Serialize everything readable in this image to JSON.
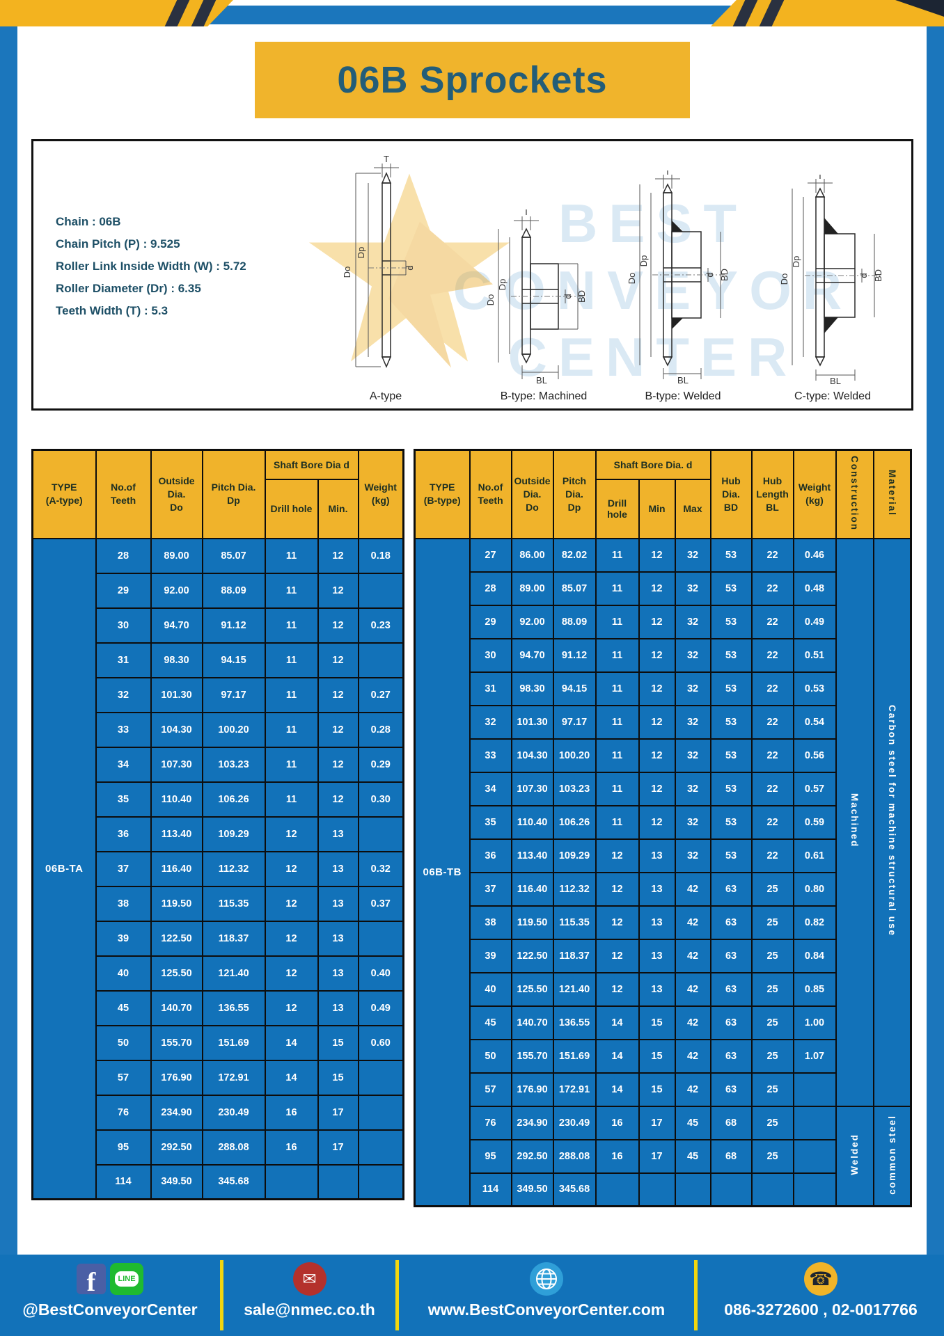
{
  "title": "06B Sprockets",
  "colors": {
    "blue": "#1272b9",
    "yellow": "#f0b32b",
    "banner_text": "#235d78",
    "footer_divider": "#f2d60e"
  },
  "specs": [
    "Chain : 06B",
    "Chain Pitch (P) : 9.525",
    "Roller Link Inside Width (W) : 5.72",
    "Roller Diameter (Dr) : 6.35",
    "Teeth Width (T) : 5.3"
  ],
  "watermark": {
    "lines": [
      "BEST",
      "CONVEYOR",
      "CENTER"
    ]
  },
  "diagrams": {
    "dims": {
      "T": "T",
      "Do": "Do",
      "Dp": "Dp",
      "d": "d",
      "BD": "BD",
      "BL": "BL"
    },
    "captions": [
      "A-type",
      "B-type: Machined",
      "B-type: Welded",
      "C-type: Welded"
    ]
  },
  "table_a": {
    "type_label": "06B-TA",
    "headers": {
      "type": [
        "TYPE",
        "(A-type)"
      ],
      "teeth": [
        "No.of",
        "Teeth"
      ],
      "outside": [
        "Outside",
        "Dia.",
        "Do"
      ],
      "pitch": [
        "Pitch Dia.",
        "Dp"
      ],
      "shaft_bore": "Shaft Bore Dia d",
      "drill": "Drill hole",
      "min": "Min.",
      "weight": [
        "Weight",
        "(kg)"
      ]
    },
    "rows": [
      [
        "28",
        "89.00",
        "85.07",
        "11",
        "12",
        "0.18"
      ],
      [
        "29",
        "92.00",
        "88.09",
        "11",
        "12",
        ""
      ],
      [
        "30",
        "94.70",
        "91.12",
        "11",
        "12",
        "0.23"
      ],
      [
        "31",
        "98.30",
        "94.15",
        "11",
        "12",
        ""
      ],
      [
        "32",
        "101.30",
        "97.17",
        "11",
        "12",
        "0.27"
      ],
      [
        "33",
        "104.30",
        "100.20",
        "11",
        "12",
        "0.28"
      ],
      [
        "34",
        "107.30",
        "103.23",
        "11",
        "12",
        "0.29"
      ],
      [
        "35",
        "110.40",
        "106.26",
        "11",
        "12",
        "0.30"
      ],
      [
        "36",
        "113.40",
        "109.29",
        "12",
        "13",
        ""
      ],
      [
        "37",
        "116.40",
        "112.32",
        "12",
        "13",
        "0.32"
      ],
      [
        "38",
        "119.50",
        "115.35",
        "12",
        "13",
        "0.37"
      ],
      [
        "39",
        "122.50",
        "118.37",
        "12",
        "13",
        ""
      ],
      [
        "40",
        "125.50",
        "121.40",
        "12",
        "13",
        "0.40"
      ],
      [
        "45",
        "140.70",
        "136.55",
        "12",
        "13",
        "0.49"
      ],
      [
        "50",
        "155.70",
        "151.69",
        "14",
        "15",
        "0.60"
      ],
      [
        "57",
        "176.90",
        "172.91",
        "14",
        "15",
        ""
      ],
      [
        "76",
        "234.90",
        "230.49",
        "16",
        "17",
        ""
      ],
      [
        "95",
        "292.50",
        "288.08",
        "16",
        "17",
        ""
      ],
      [
        "114",
        "349.50",
        "345.68",
        "",
        "",
        ""
      ]
    ]
  },
  "table_b": {
    "type_label": "06B-TB",
    "headers": {
      "type": [
        "TYPE",
        "(B-type)"
      ],
      "teeth": [
        "No.of",
        "Teeth"
      ],
      "outside": [
        "Outside",
        "Dia.",
        "Do"
      ],
      "pitch": [
        "Pitch",
        "Dia.",
        "Dp"
      ],
      "shaft_bore": "Shaft Bore Dia. d",
      "drill": "Drill hole",
      "min": "Min",
      "max": "Max",
      "hub_dia": [
        "Hub",
        "Dia.",
        "BD"
      ],
      "hub_len": [
        "Hub",
        "Length",
        "BL"
      ],
      "weight": [
        "Weight",
        "(kg)"
      ],
      "construction": "Construction",
      "material": "Material"
    },
    "rows": [
      [
        "27",
        "86.00",
        "82.02",
        "11",
        "12",
        "32",
        "53",
        "22",
        "0.46"
      ],
      [
        "28",
        "89.00",
        "85.07",
        "11",
        "12",
        "32",
        "53",
        "22",
        "0.48"
      ],
      [
        "29",
        "92.00",
        "88.09",
        "11",
        "12",
        "32",
        "53",
        "22",
        "0.49"
      ],
      [
        "30",
        "94.70",
        "91.12",
        "11",
        "12",
        "32",
        "53",
        "22",
        "0.51"
      ],
      [
        "31",
        "98.30",
        "94.15",
        "11",
        "12",
        "32",
        "53",
        "22",
        "0.53"
      ],
      [
        "32",
        "101.30",
        "97.17",
        "11",
        "12",
        "32",
        "53",
        "22",
        "0.54"
      ],
      [
        "33",
        "104.30",
        "100.20",
        "11",
        "12",
        "32",
        "53",
        "22",
        "0.56"
      ],
      [
        "34",
        "107.30",
        "103.23",
        "11",
        "12",
        "32",
        "53",
        "22",
        "0.57"
      ],
      [
        "35",
        "110.40",
        "106.26",
        "11",
        "12",
        "32",
        "53",
        "22",
        "0.59"
      ],
      [
        "36",
        "113.40",
        "109.29",
        "12",
        "13",
        "32",
        "53",
        "22",
        "0.61"
      ],
      [
        "37",
        "116.40",
        "112.32",
        "12",
        "13",
        "42",
        "63",
        "25",
        "0.80"
      ],
      [
        "38",
        "119.50",
        "115.35",
        "12",
        "13",
        "42",
        "63",
        "25",
        "0.82"
      ],
      [
        "39",
        "122.50",
        "118.37",
        "12",
        "13",
        "42",
        "63",
        "25",
        "0.84"
      ],
      [
        "40",
        "125.50",
        "121.40",
        "12",
        "13",
        "42",
        "63",
        "25",
        "0.85"
      ],
      [
        "45",
        "140.70",
        "136.55",
        "14",
        "15",
        "42",
        "63",
        "25",
        "1.00"
      ],
      [
        "50",
        "155.70",
        "151.69",
        "14",
        "15",
        "42",
        "63",
        "25",
        "1.07"
      ],
      [
        "57",
        "176.90",
        "172.91",
        "14",
        "15",
        "42",
        "63",
        "25",
        ""
      ],
      [
        "76",
        "234.90",
        "230.49",
        "16",
        "17",
        "45",
        "68",
        "25",
        ""
      ],
      [
        "95",
        "292.50",
        "288.08",
        "16",
        "17",
        "45",
        "68",
        "25",
        ""
      ],
      [
        "114",
        "349.50",
        "345.68",
        "",
        "",
        "",
        "",
        "",
        ""
      ]
    ],
    "construction_groups": [
      {
        "label": "Machined",
        "rows": 17
      },
      {
        "label": "Welded",
        "rows": 3
      }
    ],
    "material_groups": [
      {
        "label": "Carbon steel for machine structural use",
        "rows": 17
      },
      {
        "label": "common steel",
        "rows": 3
      }
    ]
  },
  "footer": {
    "line_badge": "LINE",
    "social": "@BestConveyorCenter",
    "email": "sale@nmec.co.th",
    "website": "www.BestConveyorCenter.com",
    "phone": "086-3272600 , 02-0017766"
  }
}
